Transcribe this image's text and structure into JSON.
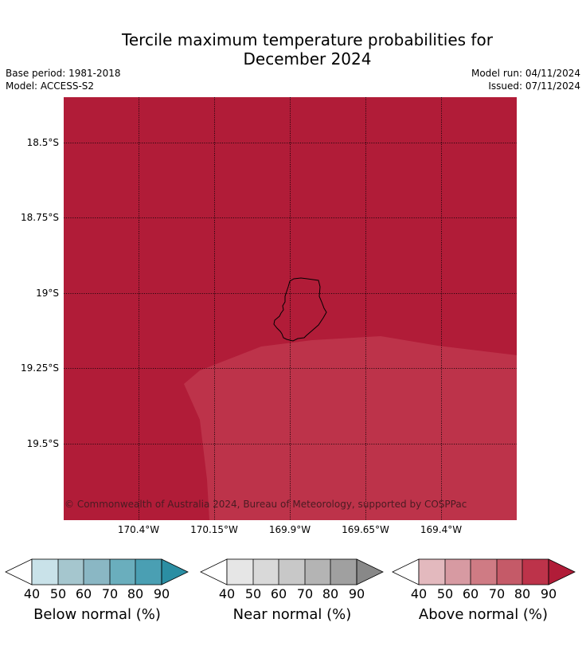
{
  "title_line1": "Tercile maximum temperature probabilities for",
  "title_line2": "December 2024",
  "meta": {
    "base_period": "Base period: 1981-2018",
    "model": "Model: ACCESS-S2",
    "model_run": "Model run: 04/11/2024",
    "issued": "Issued: 07/11/2024"
  },
  "map": {
    "lat_labels": [
      "18.5°S",
      "18.75°S",
      "19°S",
      "19.25°S",
      "19.5°S"
    ],
    "lon_labels": [
      "170.4°W",
      "170.15°W",
      "169.9°W",
      "169.65°W",
      "169.4°W"
    ],
    "copyright": "© Commonwealth of Australia 2024, Bureau of Meteorology, supported by COSPPac",
    "colors": {
      "above_90": "#b11c38",
      "above_80": "#bd334a"
    }
  },
  "colorbars": [
    {
      "label": "Below normal (%)",
      "ticks": [
        "40",
        "50",
        "60",
        "70",
        "80",
        "90"
      ],
      "colors": [
        "#ffffff",
        "#c9e2e9",
        "#a5c6ce",
        "#8ab7c4",
        "#6aaebd",
        "#4a9fb3",
        "#2b8ea3"
      ]
    },
    {
      "label": "Near normal (%)",
      "ticks": [
        "40",
        "50",
        "60",
        "70",
        "80",
        "90"
      ],
      "colors": [
        "#ffffff",
        "#e6e6e6",
        "#d9d9d9",
        "#c8c8c8",
        "#b4b4b4",
        "#a0a0a0",
        "#888888"
      ]
    },
    {
      "label": "Above normal (%)",
      "ticks": [
        "40",
        "50",
        "60",
        "70",
        "80",
        "90"
      ],
      "colors": [
        "#ffffff",
        "#e3b9be",
        "#d79aa2",
        "#cf7b84",
        "#c55a68",
        "#bd334a",
        "#b11c38"
      ]
    }
  ]
}
